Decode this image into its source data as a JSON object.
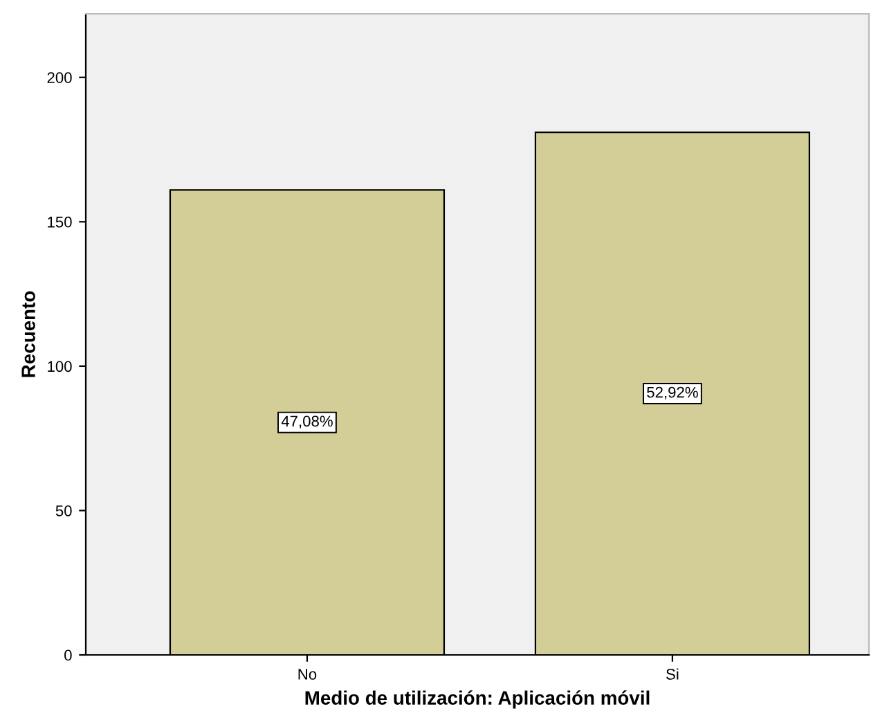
{
  "chart_data": {
    "type": "bar",
    "xlabel": "Medio de utilización: Aplicación móvil",
    "ylabel": "Recuento",
    "categories": [
      "No",
      "Si"
    ],
    "values": [
      161,
      181
    ],
    "annotations": [
      {
        "text": "47,08%",
        "x": "No",
        "y": 80.5
      },
      {
        "text": "52,92%",
        "x": "Si",
        "y": 90.5
      }
    ],
    "color": "#d3ce97",
    "ylim": [
      0,
      222
    ],
    "yticks": [
      0,
      50,
      100,
      150,
      200
    ],
    "grid": false
  }
}
